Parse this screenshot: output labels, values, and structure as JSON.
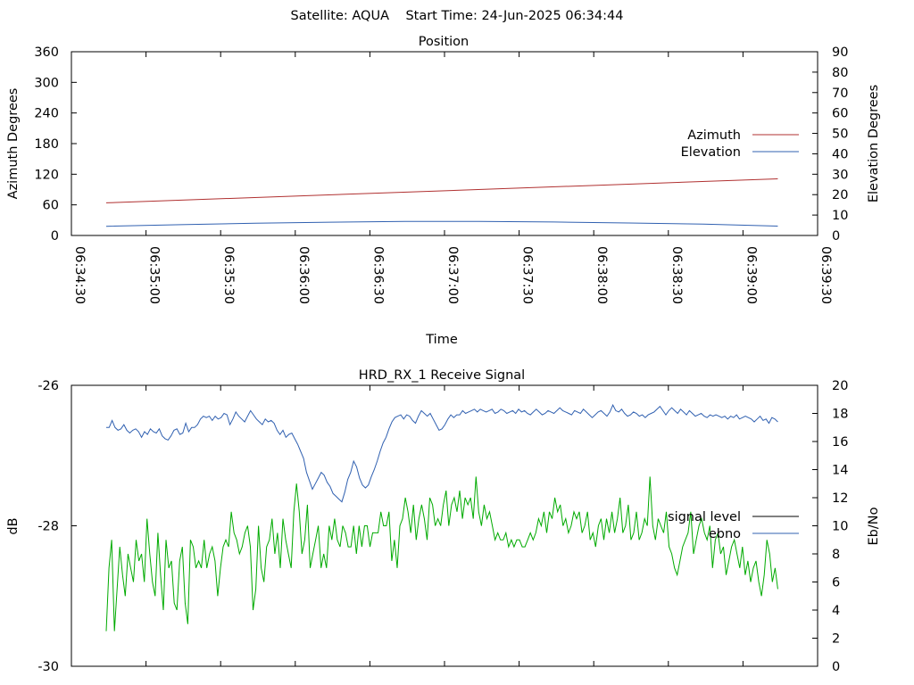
{
  "header": {
    "title": "Satellite: AQUA    Start Time: 24-Jun-2025 06:34:44"
  },
  "chart_data": [
    {
      "type": "line",
      "title": "Position",
      "xlabel": "Time",
      "ylabel_left": "Azimuth Degrees",
      "ylabel_right": "Elevation Degrees",
      "x_tick_labels": [
        "06:34:30",
        "06:35:00",
        "06:35:30",
        "06:36:00",
        "06:36:30",
        "06:37:00",
        "06:37:30",
        "06:38:00",
        "06:38:30",
        "06:39:00",
        "06:39:30"
      ],
      "xlim_seconds": [
        0,
        300
      ],
      "ylim_left": [
        0,
        360
      ],
      "yticks_left": [
        "0",
        "60",
        "120",
        "180",
        "240",
        "300",
        "360"
      ],
      "ylim_right": [
        0,
        90
      ],
      "yticks_right": [
        "0",
        "10",
        "20",
        "30",
        "40",
        "50",
        "60",
        "70",
        "80",
        "90"
      ],
      "legend": "right",
      "series": [
        {
          "name": "Azimuth",
          "axis": "left",
          "color": "#b03030",
          "x": [
            "06:34:44",
            "06:39:14"
          ],
          "y": [
            64,
            111
          ]
        },
        {
          "name": "Elevation",
          "axis": "right",
          "color": "#3060b0",
          "x": [
            "06:34:44",
            "06:35:14",
            "06:35:44",
            "06:36:14",
            "06:36:44",
            "06:37:14",
            "06:37:44",
            "06:38:14",
            "06:38:44",
            "06:39:14"
          ],
          "y": [
            4.5,
            5.3,
            6.0,
            6.5,
            6.9,
            6.9,
            6.6,
            6.1,
            5.6,
            4.6
          ]
        }
      ]
    },
    {
      "type": "line",
      "title": "HRD_RX_1 Receive Signal",
      "xlabel": "",
      "ylabel_left": "dB",
      "ylabel_right": "Eb/No",
      "ylim_left": [
        -30,
        -26
      ],
      "yticks_left": [
        "-30",
        "-28",
        "-26"
      ],
      "ylim_right": [
        0,
        20
      ],
      "yticks_right": [
        "0",
        "2",
        "4",
        "6",
        "8",
        "10",
        "12",
        "14",
        "16",
        "18",
        "20"
      ],
      "legend": "right",
      "series": [
        {
          "name": "signal level",
          "axis": "left",
          "color": "#000000",
          "values": []
        },
        {
          "name": "ebno",
          "axis": "right",
          "color": "#3060b0",
          "values": [
            17.0,
            17.0,
            17.5,
            17.0,
            16.8,
            16.9,
            17.2,
            16.8,
            16.6,
            16.8,
            16.9,
            16.7,
            16.3,
            16.7,
            16.5,
            16.9,
            16.7,
            16.6,
            16.9,
            16.4,
            16.2,
            16.1,
            16.4,
            16.8,
            16.9,
            16.5,
            16.6,
            17.3,
            16.7,
            17.0,
            17.0,
            17.2,
            17.6,
            17.8,
            17.7,
            17.8,
            17.5,
            17.8,
            17.6,
            17.7,
            18.0,
            17.9,
            17.2,
            17.6,
            18.1,
            17.8,
            17.6,
            17.4,
            17.8,
            18.2,
            17.9,
            17.6,
            17.4,
            17.2,
            17.6,
            17.4,
            17.5,
            17.3,
            16.8,
            16.5,
            16.8,
            16.3,
            16.5,
            16.6,
            16.2,
            15.8,
            15.3,
            14.8,
            13.8,
            13.2,
            12.6,
            13.0,
            13.4,
            13.8,
            13.6,
            13.1,
            12.8,
            12.3,
            12.1,
            11.9,
            11.7,
            12.4,
            13.3,
            13.8,
            14.6,
            14.2,
            13.4,
            12.9,
            12.7,
            12.9,
            13.5,
            14.0,
            14.6,
            15.3,
            15.9,
            16.3,
            16.9,
            17.4,
            17.7,
            17.8,
            17.9,
            17.6,
            17.9,
            17.8,
            17.5,
            17.3,
            17.8,
            18.2,
            18.0,
            17.8,
            18.0,
            17.6,
            17.2,
            16.8,
            16.9,
            17.2,
            17.6,
            17.9,
            17.7,
            17.9,
            17.9,
            18.2,
            18.0,
            18.1,
            18.2,
            18.3,
            18.1,
            18.3,
            18.2,
            18.1,
            18.2,
            18.3,
            18.0,
            18.1,
            18.3,
            18.2,
            18.0,
            18.1,
            18.2,
            18.0,
            18.3,
            18.1,
            18.2,
            18.0,
            17.9,
            18.1,
            18.3,
            18.1,
            17.9,
            18.0,
            18.2,
            18.1,
            18.0,
            18.2,
            18.4,
            18.2,
            18.1,
            18.0,
            17.9,
            18.2,
            18.1,
            18.0,
            18.3,
            18.1,
            17.9,
            17.7,
            17.9,
            18.1,
            18.2,
            18.0,
            17.8,
            18.1,
            18.6,
            18.2,
            18.1,
            18.3,
            18.0,
            17.8,
            17.9,
            18.1,
            18.0,
            17.8,
            17.9,
            17.7,
            17.9,
            18.0,
            18.1,
            18.3,
            18.5,
            18.2,
            17.9,
            18.2,
            18.4,
            18.2,
            18.0,
            18.3,
            18.1,
            17.9,
            18.2,
            18.0,
            17.8,
            17.9,
            18.0,
            17.8,
            17.7,
            17.9,
            17.8,
            17.9,
            17.8,
            17.7,
            17.8,
            17.6,
            17.8,
            17.7,
            17.9,
            17.6,
            17.7,
            17.8,
            17.7,
            17.6,
            17.4,
            17.6,
            17.8,
            17.5,
            17.6,
            17.3,
            17.7,
            17.6,
            17.4
          ]
        },
        {
          "name": "",
          "axis": "left",
          "color": "#00aa00",
          "values": [
            -29.5,
            -28.6,
            -28.2,
            -29.5,
            -28.9,
            -28.3,
            -28.7,
            -29.0,
            -28.4,
            -28.6,
            -28.8,
            -28.2,
            -28.5,
            -28.4,
            -28.8,
            -27.9,
            -28.4,
            -28.8,
            -29.0,
            -28.1,
            -28.7,
            -29.2,
            -28.2,
            -28.6,
            -28.5,
            -29.1,
            -29.2,
            -28.5,
            -28.3,
            -29.1,
            -29.4,
            -28.2,
            -28.3,
            -28.6,
            -28.5,
            -28.6,
            -28.2,
            -28.6,
            -28.4,
            -28.3,
            -28.5,
            -29.0,
            -28.6,
            -28.3,
            -28.2,
            -28.3,
            -27.8,
            -28.1,
            -28.2,
            -28.4,
            -28.3,
            -28.1,
            -28.0,
            -28.3,
            -29.2,
            -28.9,
            -28.0,
            -28.6,
            -28.8,
            -28.3,
            -28.2,
            -27.9,
            -28.4,
            -28.1,
            -28.6,
            -27.9,
            -28.2,
            -28.4,
            -28.6,
            -27.8,
            -27.4,
            -27.8,
            -28.4,
            -28.2,
            -27.7,
            -28.6,
            -28.4,
            -28.2,
            -28.0,
            -28.6,
            -28.4,
            -28.6,
            -28.0,
            -28.2,
            -27.9,
            -28.2,
            -28.3,
            -28.0,
            -28.1,
            -28.3,
            -28.3,
            -28.0,
            -28.4,
            -28.0,
            -28.3,
            -28.0,
            -28.0,
            -28.3,
            -28.1,
            -28.1,
            -28.1,
            -27.8,
            -28.0,
            -28.0,
            -27.8,
            -28.5,
            -28.2,
            -28.6,
            -28.0,
            -27.9,
            -27.6,
            -27.8,
            -28.1,
            -27.7,
            -28.2,
            -27.9,
            -27.7,
            -27.9,
            -28.2,
            -27.6,
            -27.7,
            -28.0,
            -27.9,
            -28.0,
            -27.7,
            -27.5,
            -28.0,
            -27.7,
            -27.6,
            -27.8,
            -27.5,
            -27.9,
            -27.6,
            -27.7,
            -27.6,
            -27.9,
            -27.3,
            -27.8,
            -28.0,
            -27.7,
            -27.9,
            -27.8,
            -28.0,
            -28.2,
            -28.1,
            -28.2,
            -28.2,
            -28.1,
            -28.3,
            -28.2,
            -28.3,
            -28.2,
            -28.2,
            -28.3,
            -28.3,
            -28.2,
            -28.1,
            -28.2,
            -28.1,
            -27.9,
            -28.0,
            -27.8,
            -28.1,
            -27.8,
            -27.9,
            -27.6,
            -27.8,
            -27.7,
            -28.0,
            -27.9,
            -28.1,
            -28.0,
            -27.8,
            -27.9,
            -27.8,
            -28.1,
            -28.0,
            -27.8,
            -28.2,
            -28.1,
            -28.3,
            -28.0,
            -27.9,
            -28.2,
            -27.9,
            -28.1,
            -27.8,
            -28.1,
            -27.9,
            -27.6,
            -28.1,
            -28.0,
            -27.7,
            -28.2,
            -28.1,
            -27.8,
            -28.2,
            -28.1,
            -27.9,
            -28.0,
            -27.3,
            -28.0,
            -28.2,
            -27.9,
            -28.0,
            -28.1,
            -27.8,
            -28.3,
            -28.4,
            -28.6,
            -28.7,
            -28.5,
            -28.3,
            -28.2,
            -28.1,
            -27.8,
            -28.4,
            -28.2,
            -28.0,
            -27.9,
            -28.1,
            -28.2,
            -28.0,
            -28.6,
            -28.2,
            -28.1,
            -28.4,
            -28.3,
            -28.7,
            -28.5,
            -28.3,
            -28.2,
            -28.4,
            -28.6,
            -28.3,
            -28.7,
            -28.5,
            -28.8,
            -28.6,
            -28.5,
            -28.8,
            -29.0,
            -28.7,
            -28.2,
            -28.4,
            -28.8,
            -28.6,
            -28.9
          ]
        }
      ]
    }
  ]
}
